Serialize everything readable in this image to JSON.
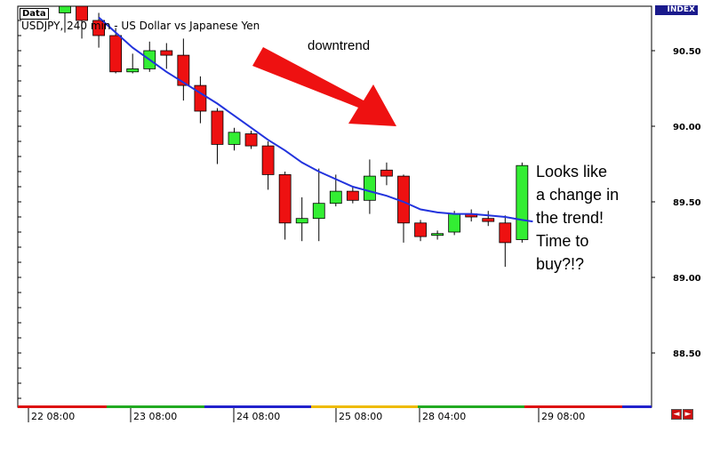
{
  "window": {
    "data_tag": "Data",
    "title": "USDJPY, 240 min - US Dollar vs Japanese Yen",
    "index_badge": "INDEX"
  },
  "annotations": {
    "downtrend": "downtrend",
    "change_lines": [
      "Looks like",
      "a change in",
      "the trend!",
      "Time to",
      "buy?!?"
    ]
  },
  "colors": {
    "bull": "#33ee33",
    "bear": "#ee1111",
    "ma_line": "#2233dd",
    "arrow": "#ee1111",
    "nav_buttons": "#cc1111"
  },
  "nav_buttons": [
    {
      "name": "scroll-left-button",
      "icon": "◄"
    },
    {
      "name": "scroll-right-button",
      "icon": "►"
    }
  ],
  "chart_data": {
    "type": "candlestick",
    "symbol": "USDJPY",
    "timeframe": "240 min",
    "title": "USDJPY, 240 min - US Dollar vs Japanese Yen",
    "ylim": [
      88.05,
      90.8
    ],
    "y_ticks": [
      "90.50",
      "90.00",
      "89.50",
      "89.00",
      "88.50"
    ],
    "x_ticks": [
      "22 08:00",
      "23 08:00",
      "24 08:00",
      "25 08:00",
      "28 04:00",
      "29 08:00"
    ],
    "candles": [
      {
        "o": 90.75,
        "h": 90.85,
        "l": 90.62,
        "c": 90.8
      },
      {
        "o": 90.8,
        "h": 90.85,
        "l": 90.58,
        "c": 90.7
      },
      {
        "o": 90.7,
        "h": 90.75,
        "l": 90.52,
        "c": 90.6
      },
      {
        "o": 90.6,
        "h": 90.65,
        "l": 90.35,
        "c": 90.36
      },
      {
        "o": 90.36,
        "h": 90.48,
        "l": 90.35,
        "c": 90.38
      },
      {
        "o": 90.38,
        "h": 90.56,
        "l": 90.36,
        "c": 90.5
      },
      {
        "o": 90.5,
        "h": 90.55,
        "l": 90.38,
        "c": 90.47
      },
      {
        "o": 90.47,
        "h": 90.58,
        "l": 90.17,
        "c": 90.27
      },
      {
        "o": 90.27,
        "h": 90.33,
        "l": 90.02,
        "c": 90.1
      },
      {
        "o": 90.1,
        "h": 90.12,
        "l": 89.75,
        "c": 89.88
      },
      {
        "o": 89.88,
        "h": 89.99,
        "l": 89.84,
        "c": 89.96
      },
      {
        "o": 89.95,
        "h": 89.97,
        "l": 89.85,
        "c": 89.87
      },
      {
        "o": 89.87,
        "h": 89.9,
        "l": 89.58,
        "c": 89.68
      },
      {
        "o": 89.68,
        "h": 89.7,
        "l": 89.25,
        "c": 89.36
      },
      {
        "o": 89.36,
        "h": 89.53,
        "l": 89.24,
        "c": 89.39
      },
      {
        "o": 89.39,
        "h": 89.72,
        "l": 89.24,
        "c": 89.49
      },
      {
        "o": 89.49,
        "h": 89.68,
        "l": 89.47,
        "c": 89.57
      },
      {
        "o": 89.57,
        "h": 89.6,
        "l": 89.49,
        "c": 89.51
      },
      {
        "o": 89.51,
        "h": 89.78,
        "l": 89.42,
        "c": 89.67
      },
      {
        "o": 89.71,
        "h": 89.76,
        "l": 89.61,
        "c": 89.67
      },
      {
        "o": 89.67,
        "h": 89.68,
        "l": 89.23,
        "c": 89.36
      },
      {
        "o": 89.36,
        "h": 89.38,
        "l": 89.24,
        "c": 89.27
      },
      {
        "o": 89.28,
        "h": 89.31,
        "l": 89.25,
        "c": 89.29
      },
      {
        "o": 89.3,
        "h": 89.44,
        "l": 89.28,
        "c": 89.42
      },
      {
        "o": 89.42,
        "h": 89.45,
        "l": 89.37,
        "c": 89.4
      },
      {
        "o": 89.39,
        "h": 89.44,
        "l": 89.34,
        "c": 89.37
      },
      {
        "o": 89.36,
        "h": 89.41,
        "l": 89.07,
        "c": 89.23
      },
      {
        "o": 89.25,
        "h": 89.76,
        "l": 89.23,
        "c": 89.74
      }
    ],
    "moving_average": [
      90.89,
      90.82,
      90.72,
      90.62,
      90.52,
      90.44,
      90.36,
      90.29,
      90.22,
      90.15,
      90.07,
      89.99,
      89.91,
      89.84,
      89.76,
      89.7,
      89.65,
      89.6,
      89.57,
      89.54,
      89.5,
      89.45,
      89.43,
      89.42,
      89.42,
      89.41,
      89.4,
      89.38
    ]
  }
}
